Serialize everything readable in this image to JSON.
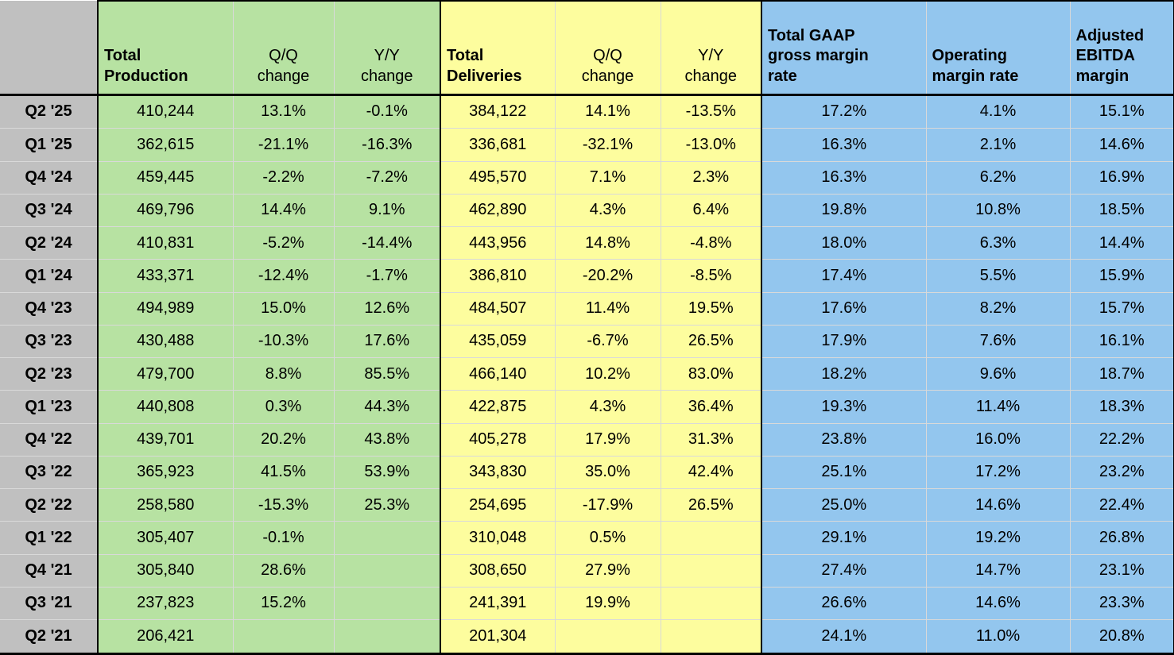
{
  "colors": {
    "green": "#b7e2a2",
    "yellow": "#fdfd9e",
    "blue": "#93c6ee",
    "gray": "#c0c0c0",
    "grid": "#d9d9d9",
    "border": "#000000",
    "text": "#000000"
  },
  "table": {
    "corner_label": "",
    "columns": [
      {
        "key": "total-production",
        "label": "Total\nProduction",
        "group": "green",
        "group_start": true,
        "bold": true
      },
      {
        "key": "production-qq-change",
        "label": "Q/Q\nchange",
        "group": "green",
        "group_start": false,
        "bold": false
      },
      {
        "key": "production-yy-change",
        "label": "Y/Y\nchange",
        "group": "green",
        "group_start": false,
        "bold": false
      },
      {
        "key": "total-deliveries",
        "label": "Total\nDeliveries",
        "group": "yellow",
        "group_start": true,
        "bold": true
      },
      {
        "key": "deliveries-qq-change",
        "label": "Q/Q\nchange",
        "group": "yellow",
        "group_start": false,
        "bold": false
      },
      {
        "key": "deliveries-yy-change",
        "label": "Y/Y\nchange",
        "group": "yellow",
        "group_start": false,
        "bold": false
      },
      {
        "key": "gaap-gross-margin-rate",
        "label": "Total GAAP\ngross margin\nrate",
        "group": "blue",
        "group_start": true,
        "bold": true
      },
      {
        "key": "operating-margin-rate",
        "label": "Operating\nmargin rate",
        "group": "blue",
        "group_start": false,
        "bold": true
      },
      {
        "key": "adjusted-ebitda-margin",
        "label": "Adjusted\nEBITDA\nmargin",
        "group": "blue",
        "group_start": false,
        "bold": true
      }
    ],
    "rows": [
      [
        "Q2 '25",
        "410,244",
        "13.1%",
        "-0.1%",
        "384,122",
        "14.1%",
        "-13.5%",
        "17.2%",
        "4.1%",
        "15.1%"
      ],
      [
        "Q1 '25",
        "362,615",
        "-21.1%",
        "-16.3%",
        "336,681",
        "-32.1%",
        "-13.0%",
        "16.3%",
        "2.1%",
        "14.6%"
      ],
      [
        "Q4 '24",
        "459,445",
        "-2.2%",
        "-7.2%",
        "495,570",
        "7.1%",
        "2.3%",
        "16.3%",
        "6.2%",
        "16.9%"
      ],
      [
        "Q3 '24",
        "469,796",
        "14.4%",
        "9.1%",
        "462,890",
        "4.3%",
        "6.4%",
        "19.8%",
        "10.8%",
        "18.5%"
      ],
      [
        "Q2 '24",
        "410,831",
        "-5.2%",
        "-14.4%",
        "443,956",
        "14.8%",
        "-4.8%",
        "18.0%",
        "6.3%",
        "14.4%"
      ],
      [
        "Q1 '24",
        "433,371",
        "-12.4%",
        "-1.7%",
        "386,810",
        "-20.2%",
        "-8.5%",
        "17.4%",
        "5.5%",
        "15.9%"
      ],
      [
        "Q4 '23",
        "494,989",
        "15.0%",
        "12.6%",
        "484,507",
        "11.4%",
        "19.5%",
        "17.6%",
        "8.2%",
        "15.7%"
      ],
      [
        "Q3 '23",
        "430,488",
        "-10.3%",
        "17.6%",
        "435,059",
        "-6.7%",
        "26.5%",
        "17.9%",
        "7.6%",
        "16.1%"
      ],
      [
        "Q2 '23",
        "479,700",
        "8.8%",
        "85.5%",
        "466,140",
        "10.2%",
        "83.0%",
        "18.2%",
        "9.6%",
        "18.7%"
      ],
      [
        "Q1 '23",
        "440,808",
        "0.3%",
        "44.3%",
        "422,875",
        "4.3%",
        "36.4%",
        "19.3%",
        "11.4%",
        "18.3%"
      ],
      [
        "Q4 '22",
        "439,701",
        "20.2%",
        "43.8%",
        "405,278",
        "17.9%",
        "31.3%",
        "23.8%",
        "16.0%",
        "22.2%"
      ],
      [
        "Q3 '22",
        "365,923",
        "41.5%",
        "53.9%",
        "343,830",
        "35.0%",
        "42.4%",
        "25.1%",
        "17.2%",
        "23.2%"
      ],
      [
        "Q2 '22",
        "258,580",
        "-15.3%",
        "25.3%",
        "254,695",
        "-17.9%",
        "26.5%",
        "25.0%",
        "14.6%",
        "22.4%"
      ],
      [
        "Q1 '22",
        "305,407",
        "-0.1%",
        "",
        "310,048",
        "0.5%",
        "",
        "29.1%",
        "19.2%",
        "26.8%"
      ],
      [
        "Q4 '21",
        "305,840",
        "28.6%",
        "",
        "308,650",
        "27.9%",
        "",
        "27.4%",
        "14.7%",
        "23.1%"
      ],
      [
        "Q3 '21",
        "237,823",
        "15.2%",
        "",
        "241,391",
        "19.9%",
        "",
        "26.6%",
        "14.6%",
        "23.3%"
      ],
      [
        "Q2 '21",
        "206,421",
        "",
        "",
        "201,304",
        "",
        "",
        "24.1%",
        "11.0%",
        "20.8%"
      ]
    ]
  }
}
